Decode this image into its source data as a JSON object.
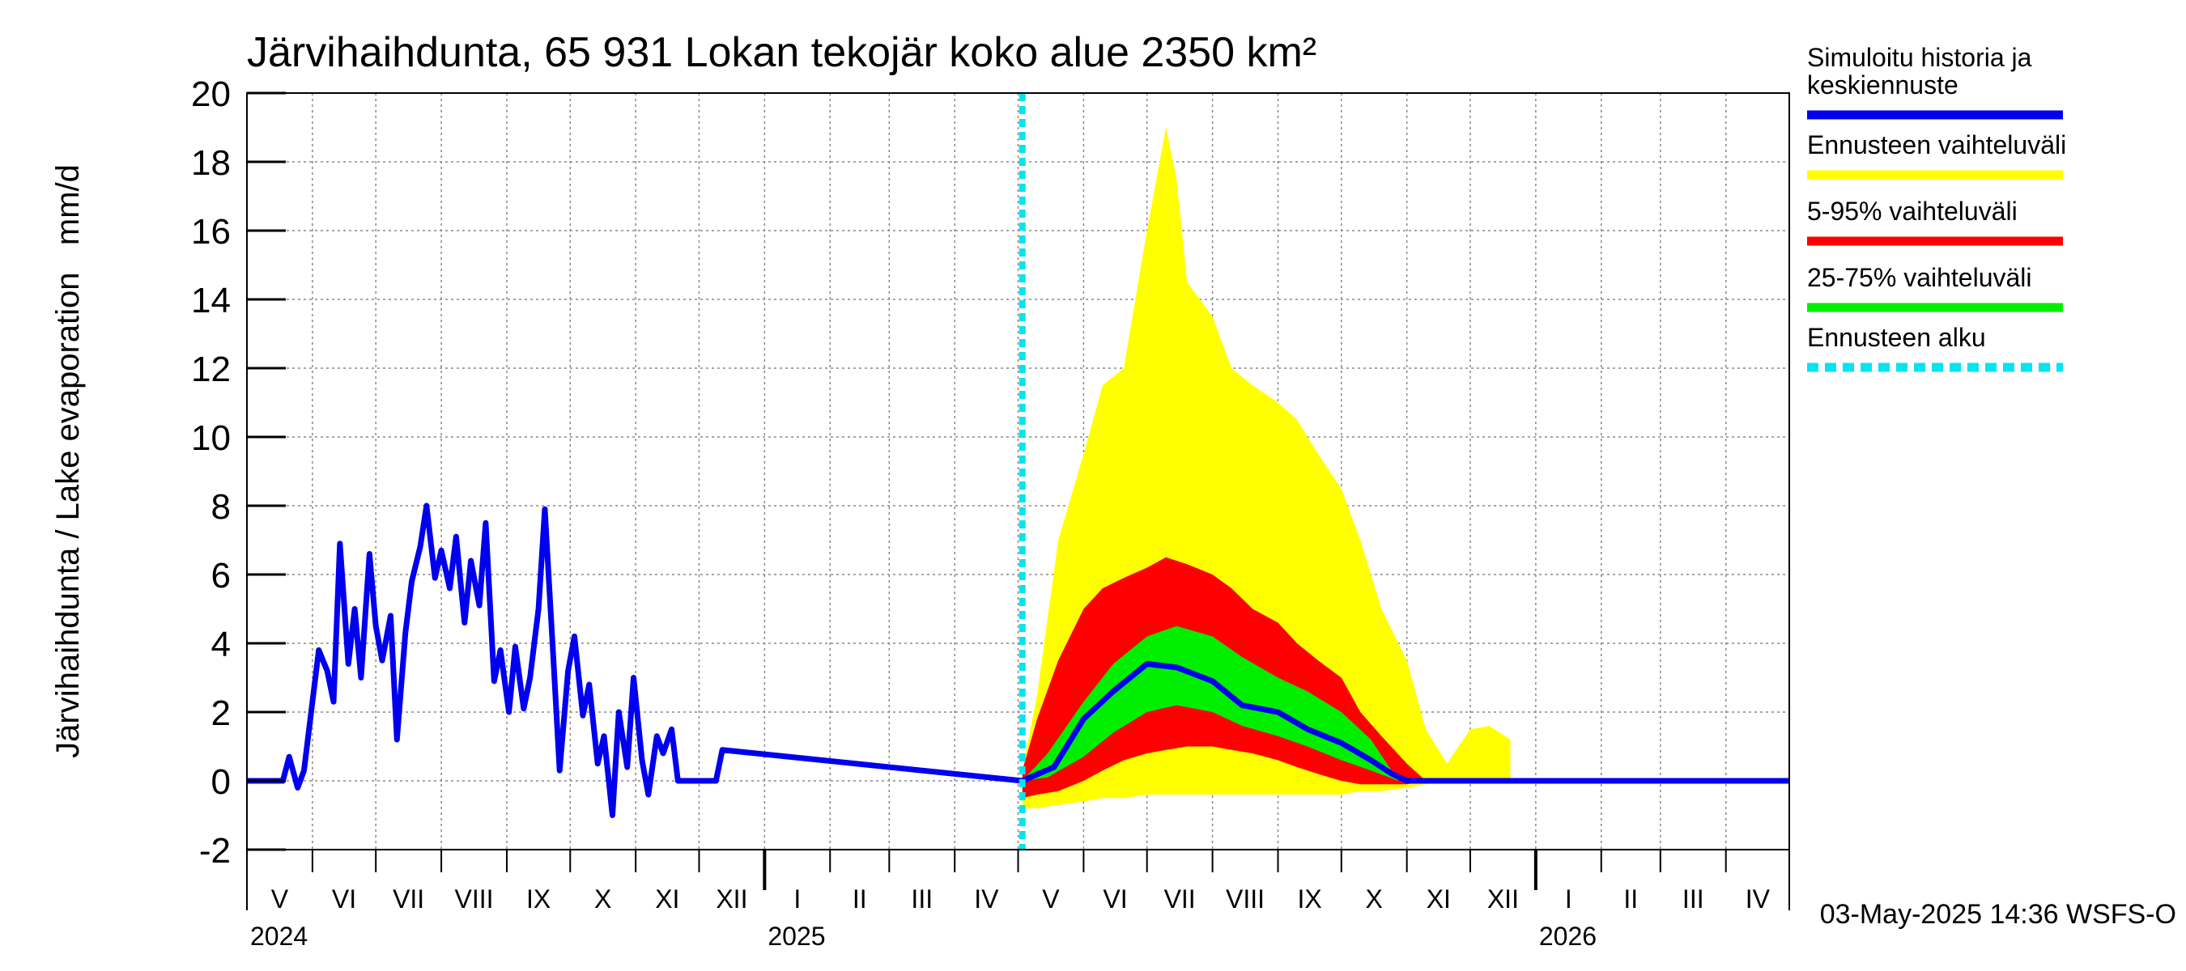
{
  "chart_data": {
    "type": "area",
    "title": "Järvihaihdunta, 65 931 Lokan tekojär koko alue 2350 km²",
    "ylabel": "Järvihaihdunta / Lake evaporation   mm/d",
    "ylim": [
      -2,
      20
    ],
    "yticks": [
      -2,
      0,
      2,
      4,
      6,
      8,
      10,
      12,
      14,
      16,
      18,
      20
    ],
    "xlim": [
      "2024-05-01",
      "2026-05-01"
    ],
    "grid": true,
    "legend_position": "right",
    "month_labels": [
      "V",
      "VI",
      "VII",
      "VIII",
      "IX",
      "X",
      "XI",
      "XII",
      "I",
      "II",
      "III",
      "IV",
      "V",
      "VI",
      "VII",
      "VIII",
      "IX",
      "X",
      "XI",
      "XII",
      "I",
      "II",
      "III",
      "IV"
    ],
    "year_labels": [
      "2024",
      "2025",
      "2026"
    ],
    "forecast_start": "2025-05-03",
    "footer": "03-May-2025 14:36 WSFS-O",
    "legend": [
      {
        "label": "Simuloitu historia ja keskiennuste",
        "lines": [
          "Simuloitu historia ja",
          "keskiennuste"
        ],
        "color": "#0000ee",
        "style": "solid"
      },
      {
        "label": "Ennusteen vaihteluväli",
        "lines": [
          "Ennusteen vaihteluväli"
        ],
        "color": "#ffff00",
        "style": "solid"
      },
      {
        "label": "5-95% vaihteluväli",
        "lines": [
          "5-95% vaihteluväli"
        ],
        "color": "#ff0000",
        "style": "solid"
      },
      {
        "label": "25-75% vaihteluväli",
        "lines": [
          "25-75% vaihteluväli"
        ],
        "color": "#00ee00",
        "style": "solid"
      },
      {
        "label": "Ennusteen alku",
        "lines": [
          "Ennusteen alku"
        ],
        "color": "#00e5ee",
        "style": "dashed"
      }
    ],
    "series": [
      {
        "name": "Simuloitu historia ja keskiennuste",
        "x": [
          "2024-05-01",
          "2024-05-18",
          "2024-05-21",
          "2024-05-25",
          "2024-05-28",
          "2024-06-01",
          "2024-06-04",
          "2024-06-08",
          "2024-06-11",
          "2024-06-14",
          "2024-06-18",
          "2024-06-21",
          "2024-06-24",
          "2024-06-28",
          "2024-07-01",
          "2024-07-04",
          "2024-07-08",
          "2024-07-11",
          "2024-07-15",
          "2024-07-18",
          "2024-07-22",
          "2024-07-25",
          "2024-07-29",
          "2024-08-01",
          "2024-08-05",
          "2024-08-08",
          "2024-08-12",
          "2024-08-15",
          "2024-08-19",
          "2024-08-22",
          "2024-08-26",
          "2024-08-29",
          "2024-09-02",
          "2024-09-05",
          "2024-09-09",
          "2024-09-12",
          "2024-09-16",
          "2024-09-19",
          "2024-09-23",
          "2024-09-26",
          "2024-09-30",
          "2024-10-03",
          "2024-10-07",
          "2024-10-10",
          "2024-10-14",
          "2024-10-17",
          "2024-10-21",
          "2024-10-24",
          "2024-10-28",
          "2024-10-31",
          "2024-11-04",
          "2024-11-07",
          "2024-11-11",
          "2024-11-14",
          "2024-11-18",
          "2024-11-21",
          "2024-11-25",
          "2024-11-28",
          "2024-12-01",
          "2024-12-09",
          "2024-12-12",
          "2025-05-03",
          "2025-05-18",
          "2025-06-01",
          "2025-06-15",
          "2025-07-01",
          "2025-07-15",
          "2025-08-01",
          "2025-08-15",
          "2025-09-01",
          "2025-09-15",
          "2025-10-01",
          "2025-10-15",
          "2025-10-25",
          "2025-11-01",
          "2026-05-01"
        ],
        "y": [
          0,
          0,
          0.7,
          -0.2,
          0.3,
          2.3,
          3.8,
          3.2,
          2.3,
          6.9,
          3.4,
          5.0,
          3.0,
          6.6,
          4.5,
          3.5,
          4.8,
          1.2,
          4.3,
          5.8,
          6.8,
          8.0,
          5.9,
          6.7,
          5.6,
          7.1,
          4.6,
          6.4,
          5.1,
          7.5,
          2.9,
          3.8,
          2.0,
          3.9,
          2.1,
          3.0,
          5.0,
          7.9,
          3.6,
          0.3,
          3.2,
          4.2,
          1.9,
          2.8,
          0.5,
          1.3,
          -1.0,
          2.0,
          0.4,
          3.0,
          0.6,
          -0.4,
          1.3,
          0.8,
          1.5,
          0,
          0,
          0,
          0,
          0,
          0.9,
          0,
          0.4,
          1.8,
          2.6,
          3.4,
          3.3,
          2.9,
          2.2,
          2.0,
          1.5,
          1.1,
          0.6,
          0.2,
          0,
          0
        ]
      },
      {
        "name": "Ennusteen vaihteluväli",
        "x": [
          "2025-05-03",
          "2025-05-10",
          "2025-05-20",
          "2025-06-01",
          "2025-06-10",
          "2025-06-20",
          "2025-07-01",
          "2025-07-10",
          "2025-07-15",
          "2025-07-20",
          "2025-08-01",
          "2025-08-10",
          "2025-08-20",
          "2025-09-01",
          "2025-09-10",
          "2025-09-20",
          "2025-10-01",
          "2025-10-10",
          "2025-10-20",
          "2025-11-01",
          "2025-11-10",
          "2025-11-20",
          "2025-12-01",
          "2025-12-10",
          "2025-12-20"
        ],
        "low": [
          -0.8,
          -0.8,
          -0.7,
          -0.6,
          -0.5,
          -0.5,
          -0.4,
          -0.4,
          -0.4,
          -0.4,
          -0.4,
          -0.4,
          -0.4,
          -0.4,
          -0.4,
          -0.4,
          -0.4,
          -0.3,
          -0.3,
          -0.2,
          -0.1,
          0,
          0,
          0,
          0
        ],
        "high": [
          0.3,
          2.5,
          7.0,
          9.5,
          11.5,
          12.0,
          16.0,
          19.0,
          17.5,
          14.5,
          13.5,
          12.0,
          11.5,
          11.0,
          10.5,
          9.5,
          8.5,
          7.0,
          5.0,
          3.5,
          1.5,
          0.5,
          1.5,
          1.6,
          1.2
        ]
      },
      {
        "name": "5-95% vaihteluväli",
        "x": [
          "2025-05-03",
          "2025-05-10",
          "2025-05-20",
          "2025-06-01",
          "2025-06-10",
          "2025-06-20",
          "2025-07-01",
          "2025-07-10",
          "2025-07-20",
          "2025-08-01",
          "2025-08-10",
          "2025-08-20",
          "2025-09-01",
          "2025-09-10",
          "2025-09-20",
          "2025-10-01",
          "2025-10-10",
          "2025-10-20",
          "2025-11-01",
          "2025-11-10"
        ],
        "low": [
          -0.5,
          -0.4,
          -0.3,
          0,
          0.3,
          0.6,
          0.8,
          0.9,
          1.0,
          1.0,
          0.9,
          0.8,
          0.6,
          0.4,
          0.2,
          0,
          -0.1,
          -0.1,
          -0.1,
          0
        ],
        "high": [
          0.3,
          1.8,
          3.5,
          5.0,
          5.6,
          5.9,
          6.2,
          6.5,
          6.3,
          6.0,
          5.6,
          5.0,
          4.6,
          4.0,
          3.5,
          3.0,
          2.0,
          1.3,
          0.5,
          0
        ]
      },
      {
        "name": "25-75% vaihteluväli",
        "x": [
          "2025-05-03",
          "2025-05-15",
          "2025-06-01",
          "2025-06-15",
          "2025-07-01",
          "2025-07-15",
          "2025-08-01",
          "2025-08-15",
          "2025-09-01",
          "2025-09-15",
          "2025-10-01",
          "2025-10-15",
          "2025-10-28"
        ],
        "low": [
          0,
          0.1,
          0.7,
          1.4,
          2.0,
          2.2,
          2.0,
          1.6,
          1.3,
          1.0,
          0.6,
          0.3,
          0
        ],
        "high": [
          0,
          0.8,
          2.3,
          3.4,
          4.2,
          4.5,
          4.2,
          3.6,
          3.0,
          2.6,
          2.0,
          1.2,
          0
        ]
      }
    ]
  }
}
